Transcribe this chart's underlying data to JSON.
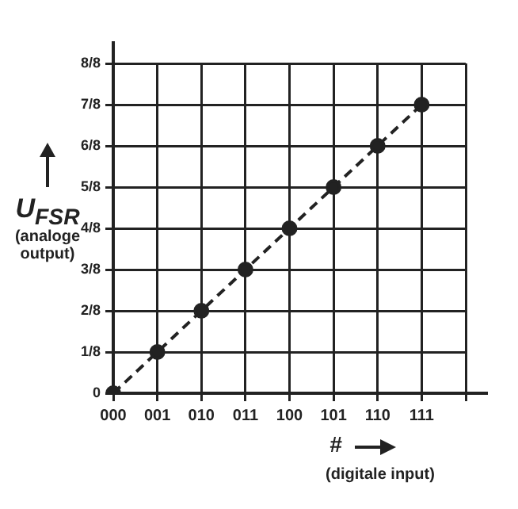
{
  "chart_data": {
    "type": "line",
    "ylabel": "U$_{FSR}$ (analoge output)",
    "xlabel": "# (digitale input)",
    "categories": [
      "000",
      "001",
      "010",
      "011",
      "100",
      "101",
      "110",
      "111",
      null
    ],
    "series": [
      {
        "color": "#222222",
        "values": [
          0,
          0.125,
          0.25,
          0.375,
          0.5,
          0.625,
          0.75,
          0.875,
          null
        ]
      }
    ],
    "ylim": [
      0,
      1
    ],
    "yticks": [
      0,
      {
        "value": 0.125,
        "label": "1/8"
      },
      {
        "value": 0.25,
        "label": "2/8"
      },
      {
        "value": 0.375,
        "label": "3/8"
      },
      {
        "value": 0.5,
        "label": "4/8"
      },
      {
        "value": 0.625,
        "label": "5/8"
      },
      {
        "value": 0.75,
        "label": "6/8"
      },
      {
        "value": 0.875,
        "label": "7/8"
      },
      {
        "value": 1,
        "label": "8/8"
      }
    ],
    "grid": true,
    "legend": false,
    "marker": "circle",
    "line_style": "dashed"
  }
}
